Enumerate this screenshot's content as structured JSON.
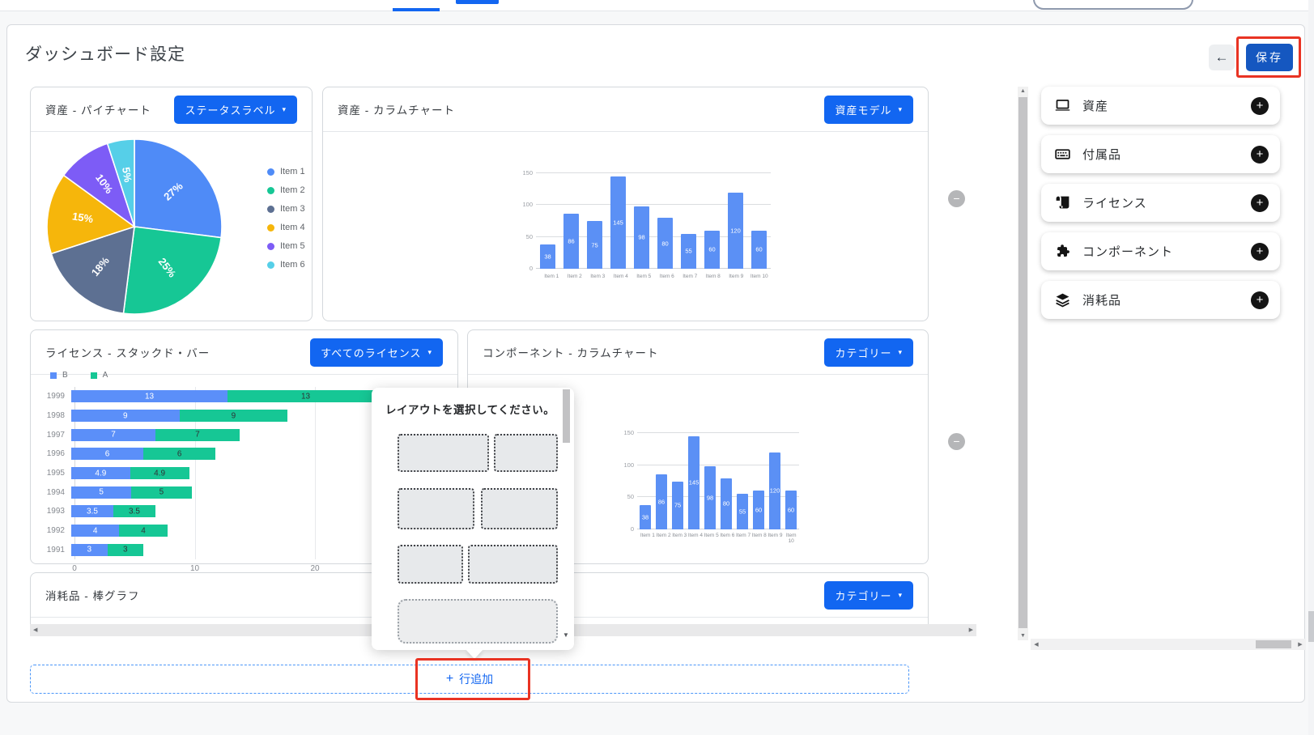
{
  "header": {
    "title": "ダッシュボード設定",
    "save_label": "保存"
  },
  "icons": {
    "plus": "+",
    "minus": "−",
    "caret": "▾",
    "back_arrow": "←",
    "scroll_up": "▲",
    "scroll_down": "▼",
    "scroll_left": "◀",
    "scroll_right": "▶"
  },
  "panels": {
    "pie": {
      "title": "資産 - パイチャート",
      "dropdown": "ステータスラベル"
    },
    "assets_col": {
      "title": "資産 - カラムチャート",
      "dropdown": "資産モデル"
    },
    "license": {
      "title": "ライセンス - スタックド・バー",
      "dropdown": "すべてのライセンス"
    },
    "components": {
      "title": "コンポーネント - カラムチャート",
      "dropdown": "カテゴリー"
    },
    "consumables": {
      "title": "消耗品 - 棒グラフ",
      "dropdown": "カテゴリー"
    }
  },
  "chart_data": [
    {
      "id": "assets-pie",
      "type": "pie",
      "labels": [
        "Item 1",
        "Item 2",
        "Item 3",
        "Item 4",
        "Item 5",
        "Item 6"
      ],
      "values": [
        27,
        25,
        18,
        15,
        10,
        5
      ],
      "unit": "%",
      "colors": [
        "#4f8bf7",
        "#16c795",
        "#5d7092",
        "#f6b60b",
        "#7d5cf6",
        "#56cfe8"
      ],
      "legend_position": "right"
    },
    {
      "id": "assets-column",
      "type": "bar",
      "categories": [
        "Item 1",
        "Item 2",
        "Item 3",
        "Item 4",
        "Item 5",
        "Item 6",
        "Item 7",
        "Item 8",
        "Item 9",
        "Item 10"
      ],
      "values": [
        38,
        86,
        75,
        145,
        98,
        80,
        55,
        60,
        120,
        60
      ],
      "yticks": [
        0,
        50,
        100,
        150
      ],
      "ylim": [
        0,
        160
      ],
      "bar_color": "#5b90f5",
      "grid": true
    },
    {
      "id": "license-stacked",
      "type": "stacked-bar-horizontal",
      "categories": [
        "1999",
        "1998",
        "1997",
        "1996",
        "1995",
        "1994",
        "1993",
        "1992",
        "1991"
      ],
      "series": [
        {
          "name": "B",
          "color": "#5b8ff9",
          "values": [
            13,
            9,
            7,
            6,
            4.9,
            5,
            3.5,
            4,
            3
          ]
        },
        {
          "name": "A",
          "color": "#16c795",
          "values": [
            13,
            9,
            7,
            6,
            4.9,
            5,
            3.5,
            4,
            3
          ]
        }
      ],
      "xticks": [
        0,
        10,
        20
      ],
      "xlim": [
        0,
        30
      ],
      "legend_position": "top-left",
      "grid": true
    },
    {
      "id": "components-column",
      "type": "bar",
      "categories": [
        "Item 1",
        "Item 2",
        "Item 3",
        "Item 4",
        "Item 5",
        "Item 6",
        "Item 7",
        "Item 8",
        "Item 9",
        "Item 10"
      ],
      "values": [
        38,
        86,
        75,
        145,
        98,
        80,
        55,
        60,
        120,
        60
      ],
      "yticks": [
        0,
        50,
        100,
        150
      ],
      "ylim": [
        0,
        160
      ],
      "bar_color": "#5b90f5",
      "grid": true
    }
  ],
  "popup": {
    "title": "レイアウトを選択してください。",
    "options": [
      [
        57,
        40
      ],
      [
        48,
        48
      ],
      [
        41,
        56
      ],
      [
        100
      ]
    ]
  },
  "add_row": {
    "label": "行追加"
  },
  "sidebar": {
    "items": [
      {
        "label": "資産",
        "icon": "laptop-icon"
      },
      {
        "label": "付属品",
        "icon": "keyboard-icon"
      },
      {
        "label": "ライセンス",
        "icon": "license-icon"
      },
      {
        "label": "コンポーネント",
        "icon": "puzzle-icon"
      },
      {
        "label": "消耗品",
        "icon": "layers-icon"
      }
    ]
  },
  "colors": {
    "accent": "#1266f1",
    "save_button": "#1557c0",
    "annotation": "#e93323"
  }
}
